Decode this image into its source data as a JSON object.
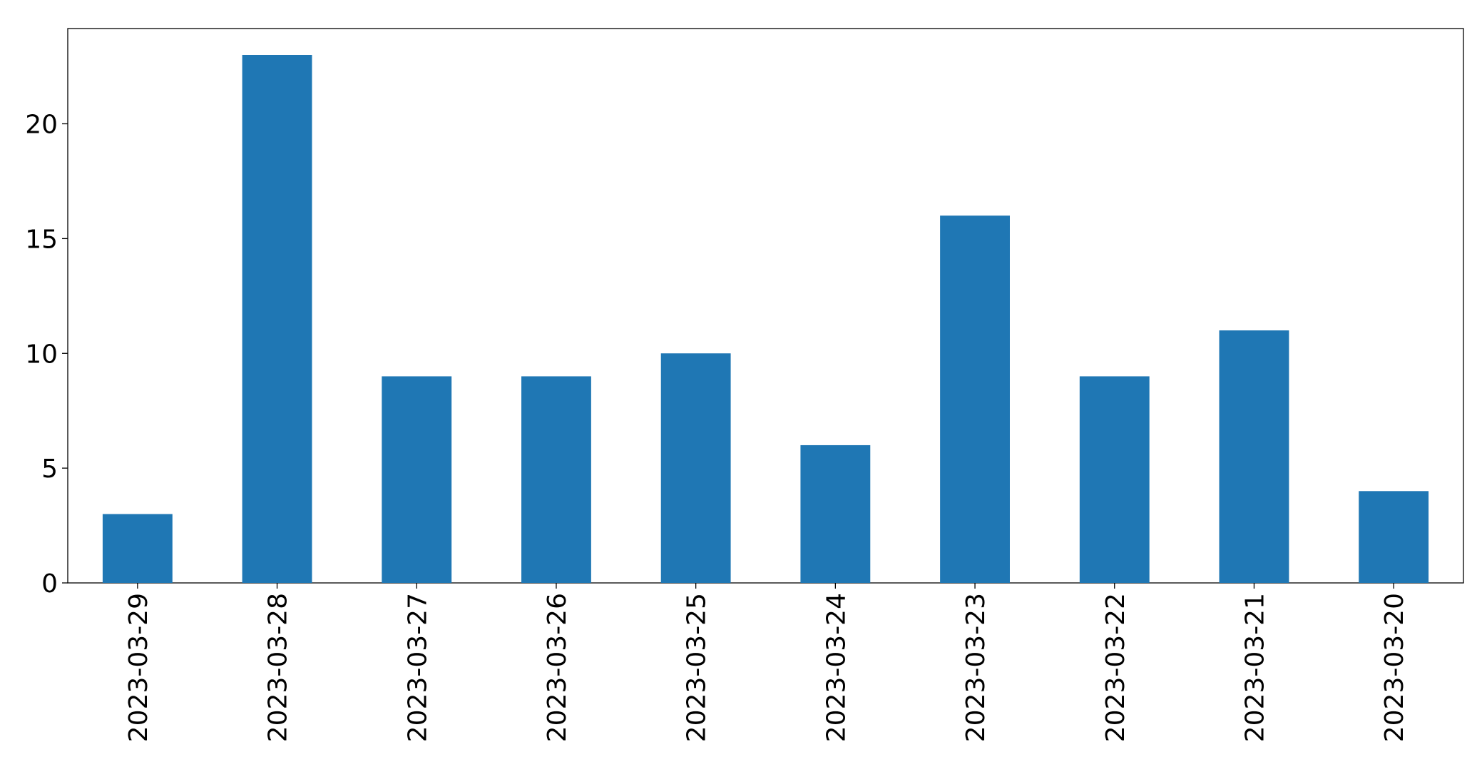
{
  "chart_data": {
    "type": "bar",
    "categories": [
      "2023-03-29",
      "2023-03-28",
      "2023-03-27",
      "2023-03-26",
      "2023-03-25",
      "2023-03-24",
      "2023-03-23",
      "2023-03-22",
      "2023-03-21",
      "2023-03-20"
    ],
    "values": [
      3,
      23,
      9,
      9,
      10,
      6,
      16,
      9,
      11,
      4
    ],
    "color": "#1f77b4",
    "ylim": [
      0,
      24.15
    ],
    "yticks": [
      0,
      5,
      10,
      15,
      20
    ],
    "grid": false
  }
}
